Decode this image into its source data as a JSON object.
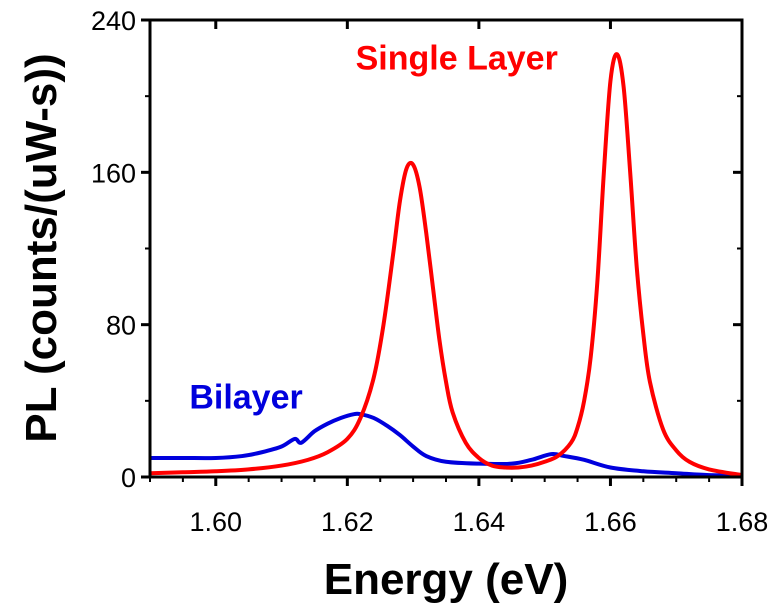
{
  "chart_data": {
    "type": "line",
    "xlabel": "Energy (eV)",
    "ylabel": "PL (counts/(uW-s))",
    "xlim": [
      1.59,
      1.68
    ],
    "ylim": [
      0,
      240
    ],
    "x_ticks": [
      1.6,
      1.62,
      1.64,
      1.66,
      1.68
    ],
    "x_tick_labels": [
      "1.60",
      "1.62",
      "1.64",
      "1.66",
      "1.68"
    ],
    "y_ticks": [
      0,
      80,
      160,
      240
    ],
    "y_tick_labels": [
      "0",
      "80",
      "160",
      "240"
    ],
    "grid": false,
    "series": [
      {
        "name": "Single Layer",
        "color": "#ff0000",
        "x": [
          1.59,
          1.595,
          1.6,
          1.605,
          1.61,
          1.614,
          1.617,
          1.62,
          1.622,
          1.624,
          1.6255,
          1.627,
          1.628,
          1.629,
          1.63,
          1.631,
          1.632,
          1.633,
          1.634,
          1.635,
          1.636,
          1.638,
          1.64,
          1.642,
          1.644,
          1.646,
          1.648,
          1.65,
          1.652,
          1.654,
          1.655,
          1.656,
          1.657,
          1.658,
          1.659,
          1.66,
          1.661,
          1.662,
          1.663,
          1.664,
          1.665,
          1.666,
          1.668,
          1.67,
          1.672,
          1.675,
          1.68
        ],
        "y": [
          2,
          2.5,
          3,
          4,
          6,
          9,
          13,
          20,
          31,
          52,
          80,
          118,
          145,
          162,
          164,
          152,
          128,
          100,
          72,
          50,
          34,
          18,
          10,
          6,
          5,
          5,
          6,
          8,
          11,
          18,
          26,
          40,
          63,
          102,
          160,
          208,
          222,
          205,
          160,
          110,
          75,
          50,
          25,
          14,
          8,
          4,
          1
        ],
        "label": "Single Layer"
      },
      {
        "name": "Bilayer",
        "color": "#0000dd",
        "x": [
          1.59,
          1.595,
          1.6,
          1.604,
          1.607,
          1.61,
          1.612,
          1.613,
          1.615,
          1.617,
          1.619,
          1.621,
          1.622,
          1.624,
          1.626,
          1.628,
          1.63,
          1.632,
          1.635,
          1.64,
          1.645,
          1.648,
          1.651,
          1.653,
          1.656,
          1.66,
          1.665,
          1.67,
          1.675,
          1.68
        ],
        "y": [
          10,
          10,
          10,
          11,
          13,
          16,
          20,
          18,
          24,
          28,
          31,
          33,
          33,
          31,
          27,
          22,
          16,
          11,
          8,
          7,
          7,
          9,
          12,
          11,
          9,
          5,
          3,
          2,
          1,
          1
        ],
        "label": "Bilayer"
      }
    ]
  }
}
